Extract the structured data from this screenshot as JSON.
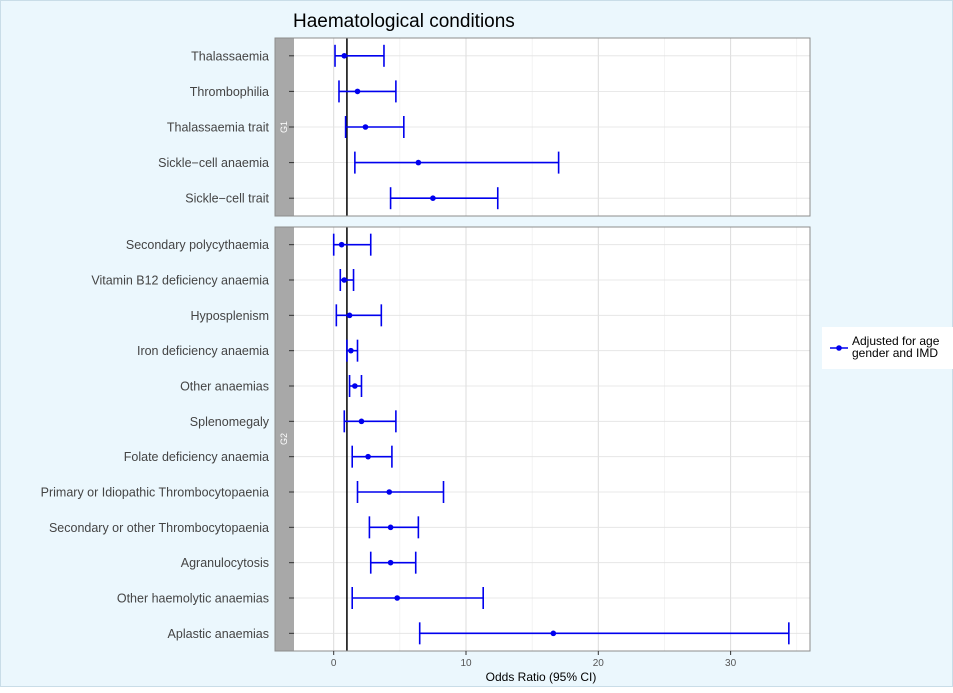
{
  "chart_data": {
    "type": "forest",
    "title": "Haematological conditions",
    "xlabel": "Odds Ratio (95% CI)",
    "xlim": [
      -3,
      36
    ],
    "x_ticks": [
      0,
      10,
      20,
      30
    ],
    "reference_line": 1,
    "grid": true,
    "legend_position": "right",
    "colors": {
      "series": "#0000ee",
      "strip": "#a8a8a8",
      "reference": "#000000"
    },
    "series": [
      {
        "name": "Adjusted for age, gender and IMD",
        "legend_lines": [
          "Adjusted for age",
          "gender and IMD"
        ]
      }
    ],
    "panels": [
      {
        "label": "G1",
        "items": [
          {
            "name": "Thalassaemia",
            "or": 0.8,
            "lo": 0.1,
            "hi": 3.8
          },
          {
            "name": "Thrombophilia",
            "or": 1.8,
            "lo": 0.4,
            "hi": 4.7
          },
          {
            "name": "Thalassaemia trait",
            "or": 2.4,
            "lo": 0.9,
            "hi": 5.3
          },
          {
            "name": "Sickle−cell anaemia",
            "or": 6.4,
            "lo": 1.6,
            "hi": 17.0
          },
          {
            "name": "Sickle−cell trait",
            "or": 7.5,
            "lo": 4.3,
            "hi": 12.4
          }
        ]
      },
      {
        "label": "G2",
        "items": [
          {
            "name": "Secondary polycythaemia",
            "or": 0.6,
            "lo": 0.0,
            "hi": 2.8
          },
          {
            "name": "Vitamin B12 deficiency anaemia",
            "or": 0.8,
            "lo": 0.5,
            "hi": 1.5
          },
          {
            "name": "Hyposplenism",
            "or": 1.2,
            "lo": 0.2,
            "hi": 3.6
          },
          {
            "name": "Iron deficiency anaemia",
            "or": 1.3,
            "lo": 1.0,
            "hi": 1.8
          },
          {
            "name": "Other anaemias",
            "or": 1.6,
            "lo": 1.2,
            "hi": 2.1
          },
          {
            "name": "Splenomegaly",
            "or": 2.1,
            "lo": 0.8,
            "hi": 4.7
          },
          {
            "name": "Folate deficiency anaemia",
            "or": 2.6,
            "lo": 1.4,
            "hi": 4.4
          },
          {
            "name": "Primary or Idiopathic Thrombocytopaenia",
            "or": 4.2,
            "lo": 1.8,
            "hi": 8.3
          },
          {
            "name": "Secondary or other Thrombocytopaenia",
            "or": 4.3,
            "lo": 2.7,
            "hi": 6.4
          },
          {
            "name": "Agranulocytosis",
            "or": 4.3,
            "lo": 2.8,
            "hi": 6.2
          },
          {
            "name": "Other haemolytic anaemias",
            "or": 4.8,
            "lo": 1.4,
            "hi": 11.3
          },
          {
            "name": "Aplastic anaemias",
            "or": 16.6,
            "lo": 6.5,
            "hi": 34.4
          }
        ]
      }
    ]
  }
}
